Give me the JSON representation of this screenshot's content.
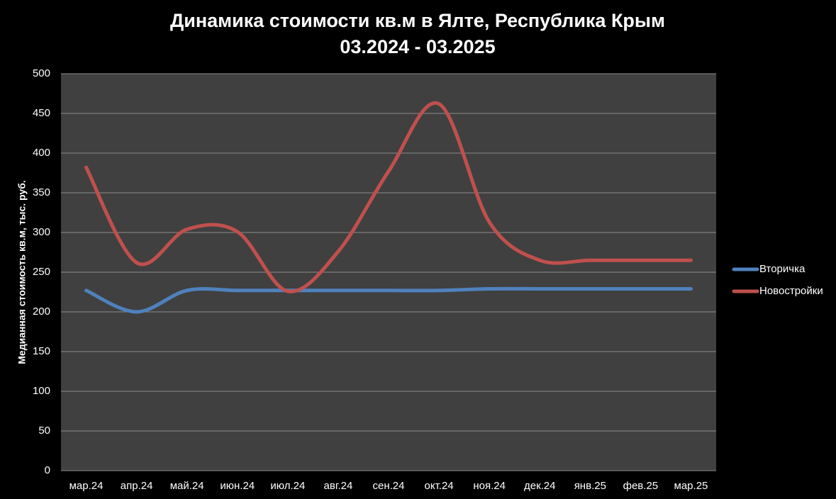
{
  "chart_data": {
    "type": "line",
    "title": "Динамика стоимости кв.м в Ялте, Республика Крым",
    "subtitle": "03.2024 - 03.2025",
    "y_label": "Медианная стоимость кв.м, тыс. руб.",
    "categories": [
      "мар.24",
      "апр.24",
      "май.24",
      "июн.24",
      "июл.24",
      "авг.24",
      "сен.24",
      "окт.24",
      "ноя.24",
      "дек.24",
      "янв.25",
      "фев.25",
      "мар.25"
    ],
    "series": [
      {
        "name": "Вторичка",
        "color": "#4f81bd",
        "values": [
          227,
          200,
          227,
          227,
          227,
          227,
          227,
          227,
          229,
          229,
          229,
          229,
          229
        ]
      },
      {
        "name": "Новостройки",
        "color": "#c0504d",
        "values": [
          382,
          262,
          304,
          301,
          226,
          276,
          377,
          462,
          313,
          265,
          265,
          265,
          265
        ]
      }
    ],
    "ylim": [
      0,
      500
    ],
    "yticks": [
      0,
      50,
      100,
      150,
      200,
      250,
      300,
      350,
      400,
      450,
      500
    ],
    "grid": true,
    "legend": "right"
  }
}
